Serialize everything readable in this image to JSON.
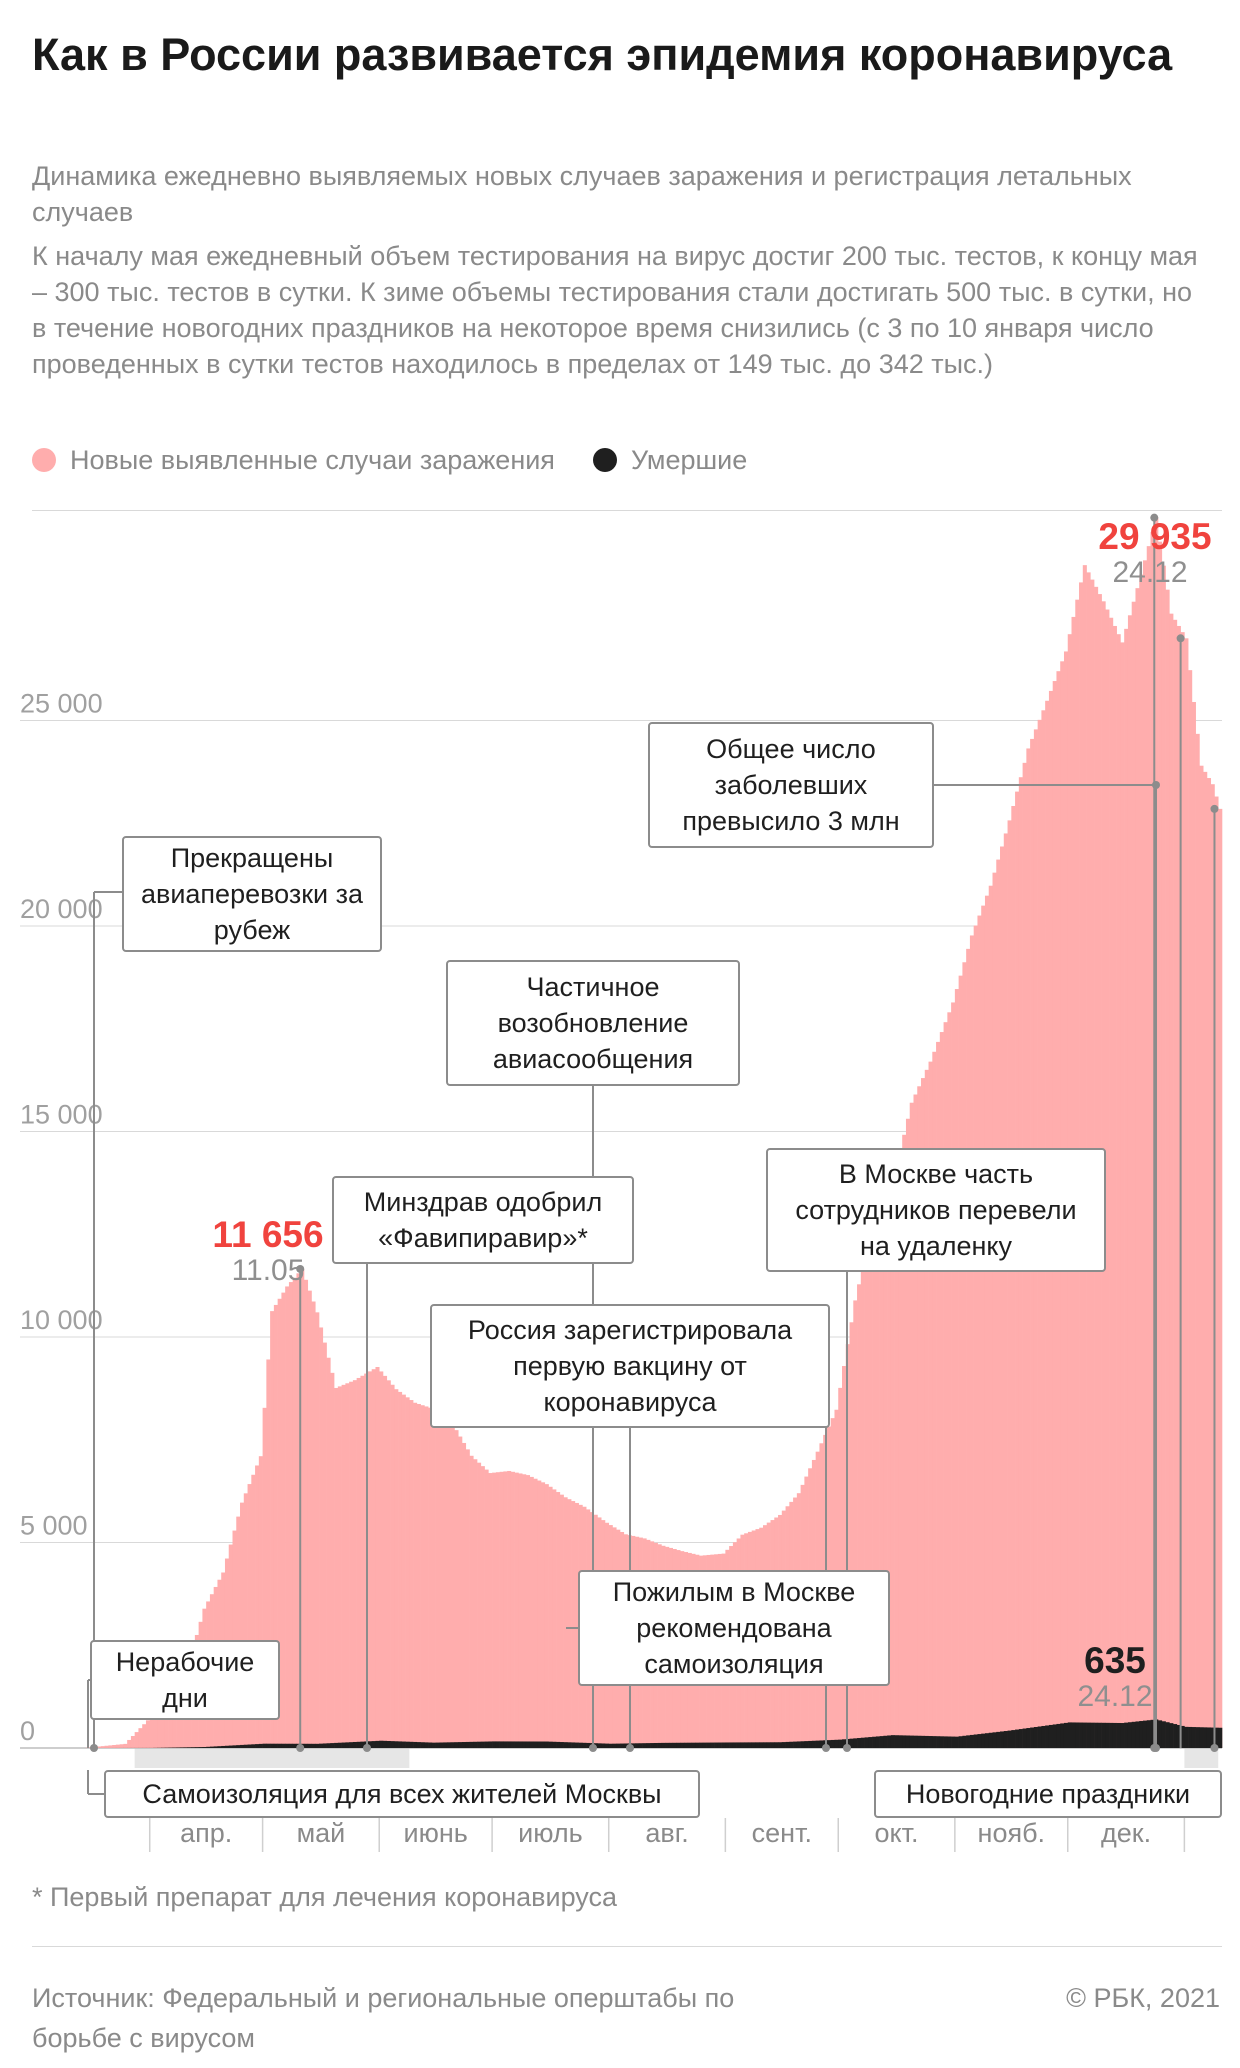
{
  "title": "Как в России развивается эпидемия коронавируса",
  "subtitle": "Динамика ежедневно выявляемых новых случаев заражения и регистрация летальных случаев",
  "description": "К началу мая ежедневный объем тестирования на вирус достиг 200 тыс. тестов, к концу мая – 300 тыс. тестов в сутки. К зиме объемы тестирования стали достигать 500 тыс. в сутки, но в течение новогодних праздников на некоторое время снизились (с 3 по 10 января число проведенных в сутки тестов находилось в пределах от 149 тыс. до 342 тыс.)",
  "legend": {
    "cases": "Новые выявленные случаи заражения",
    "deaths": "Умершие"
  },
  "colors": {
    "cases": "#ffadad",
    "deaths": "#1f1f1f",
    "peak": "#f0433e",
    "box_border": "#8c8c8c",
    "band": "#e6e6e6"
  },
  "annotations": {
    "flights_stopped": "Прекращены авиаперевозки за рубеж",
    "flights_resumed": "Частичное возобновление авиасообщения",
    "cases_3m": "Общее число заболевших превысило 3 млн",
    "favipiravir": "Минздрав одобрил «Фавипиравир»*",
    "vaccine": "Россия зарегистрировала первую вакцину от коронавируса",
    "remote_work": "В Москве часть сотрудников перевели на удаленку",
    "elderly": "Пожилым в Москве рекомендована самоизоляция",
    "non_working": "Нерабочие дни",
    "self_isolation": "Самоизоляция для всех жителей Москвы",
    "new_year": "Новогодние праздники"
  },
  "peaks": {
    "cases_max": {
      "value": "29 935",
      "date": "24.12"
    },
    "spring_max": {
      "value": "11 656",
      "date": "11.05"
    },
    "deaths_max": {
      "value": "635",
      "date": "24.12"
    }
  },
  "footnote": "* Первый препарат для лечения коронавируса",
  "source": "Источник: Федеральный и региональные оперштабы по борьбе с вирусом",
  "copyright": "© РБК, 2021",
  "chart_data": {
    "type": "bar",
    "ylim": [
      0,
      30000
    ],
    "yticks": [
      0,
      5000,
      10000,
      15000,
      20000,
      25000
    ],
    "ytick_labels": [
      "0",
      "5 000",
      "10 000",
      "15 000",
      "20 000",
      "25 000"
    ],
    "months": [
      "апр.",
      "май",
      "июнь",
      "июль",
      "авг.",
      "сент.",
      "окт.",
      "нояб.",
      "дек."
    ],
    "x_range": [
      "2020-03-14",
      "2021-01-10"
    ],
    "series": [
      {
        "name": "Новые выявленные случаи заражения",
        "points": [
          [
            "2020-03-14",
            0
          ],
          [
            "2020-03-25",
            100
          ],
          [
            "2020-04-01",
            770
          ],
          [
            "2020-04-05",
            950
          ],
          [
            "2020-04-10",
            1790
          ],
          [
            "2020-04-15",
            3390
          ],
          [
            "2020-04-20",
            4270
          ],
          [
            "2020-04-25",
            5970
          ],
          [
            "2020-04-30",
            7100
          ],
          [
            "2020-05-03",
            10630
          ],
          [
            "2020-05-07",
            11230
          ],
          [
            "2020-05-11",
            11656
          ],
          [
            "2020-05-15",
            10600
          ],
          [
            "2020-05-20",
            8760
          ],
          [
            "2020-05-25",
            8950
          ],
          [
            "2020-05-31",
            9270
          ],
          [
            "2020-06-05",
            8730
          ],
          [
            "2020-06-10",
            8400
          ],
          [
            "2020-06-15",
            8250
          ],
          [
            "2020-06-20",
            7890
          ],
          [
            "2020-06-25",
            7110
          ],
          [
            "2020-06-30",
            6690
          ],
          [
            "2020-07-05",
            6740
          ],
          [
            "2020-07-10",
            6640
          ],
          [
            "2020-07-15",
            6420
          ],
          [
            "2020-07-20",
            6100
          ],
          [
            "2020-07-25",
            5870
          ],
          [
            "2020-07-31",
            5480
          ],
          [
            "2020-08-05",
            5200
          ],
          [
            "2020-08-10",
            5100
          ],
          [
            "2020-08-15",
            4920
          ],
          [
            "2020-08-20",
            4790
          ],
          [
            "2020-08-25",
            4680
          ],
          [
            "2020-08-31",
            4730
          ],
          [
            "2020-09-05",
            5190
          ],
          [
            "2020-09-10",
            5360
          ],
          [
            "2020-09-15",
            5670
          ],
          [
            "2020-09-20",
            6200
          ],
          [
            "2020-09-25",
            7210
          ],
          [
            "2020-09-30",
            8230
          ],
          [
            "2020-10-05",
            10890
          ],
          [
            "2020-10-10",
            12850
          ],
          [
            "2020-10-15",
            13750
          ],
          [
            "2020-10-20",
            15700
          ],
          [
            "2020-10-25",
            16700
          ],
          [
            "2020-10-31",
            18140
          ],
          [
            "2020-11-05",
            19770
          ],
          [
            "2020-11-10",
            20980
          ],
          [
            "2020-11-15",
            22570
          ],
          [
            "2020-11-20",
            24320
          ],
          [
            "2020-11-25",
            25480
          ],
          [
            "2020-11-30",
            26680
          ],
          [
            "2020-12-05",
            28780
          ],
          [
            "2020-12-10",
            27900
          ],
          [
            "2020-12-15",
            26900
          ],
          [
            "2020-12-20",
            28550
          ],
          [
            "2020-12-24",
            29935
          ],
          [
            "2020-12-28",
            27600
          ],
          [
            "2021-01-01",
            27000
          ],
          [
            "2021-01-05",
            23900
          ],
          [
            "2021-01-08",
            23450
          ],
          [
            "2021-01-10",
            22850
          ]
        ]
      },
      {
        "name": "Умершие",
        "points": [
          [
            "2020-03-14",
            0
          ],
          [
            "2020-04-01",
            2
          ],
          [
            "2020-04-15",
            22
          ],
          [
            "2020-05-01",
            96
          ],
          [
            "2020-05-15",
            93
          ],
          [
            "2020-06-01",
            162
          ],
          [
            "2020-06-15",
            119
          ],
          [
            "2020-07-01",
            147
          ],
          [
            "2020-07-15",
            144
          ],
          [
            "2020-08-01",
            95
          ],
          [
            "2020-08-15",
            114
          ],
          [
            "2020-09-01",
            123
          ],
          [
            "2020-09-15",
            128
          ],
          [
            "2020-10-01",
            186
          ],
          [
            "2020-10-15",
            286
          ],
          [
            "2020-11-01",
            252
          ],
          [
            "2020-11-15",
            387
          ],
          [
            "2020-12-01",
            569
          ],
          [
            "2020-12-15",
            555
          ],
          [
            "2020-12-24",
            635
          ],
          [
            "2021-01-01",
            470
          ],
          [
            "2021-01-10",
            450
          ]
        ]
      }
    ]
  }
}
